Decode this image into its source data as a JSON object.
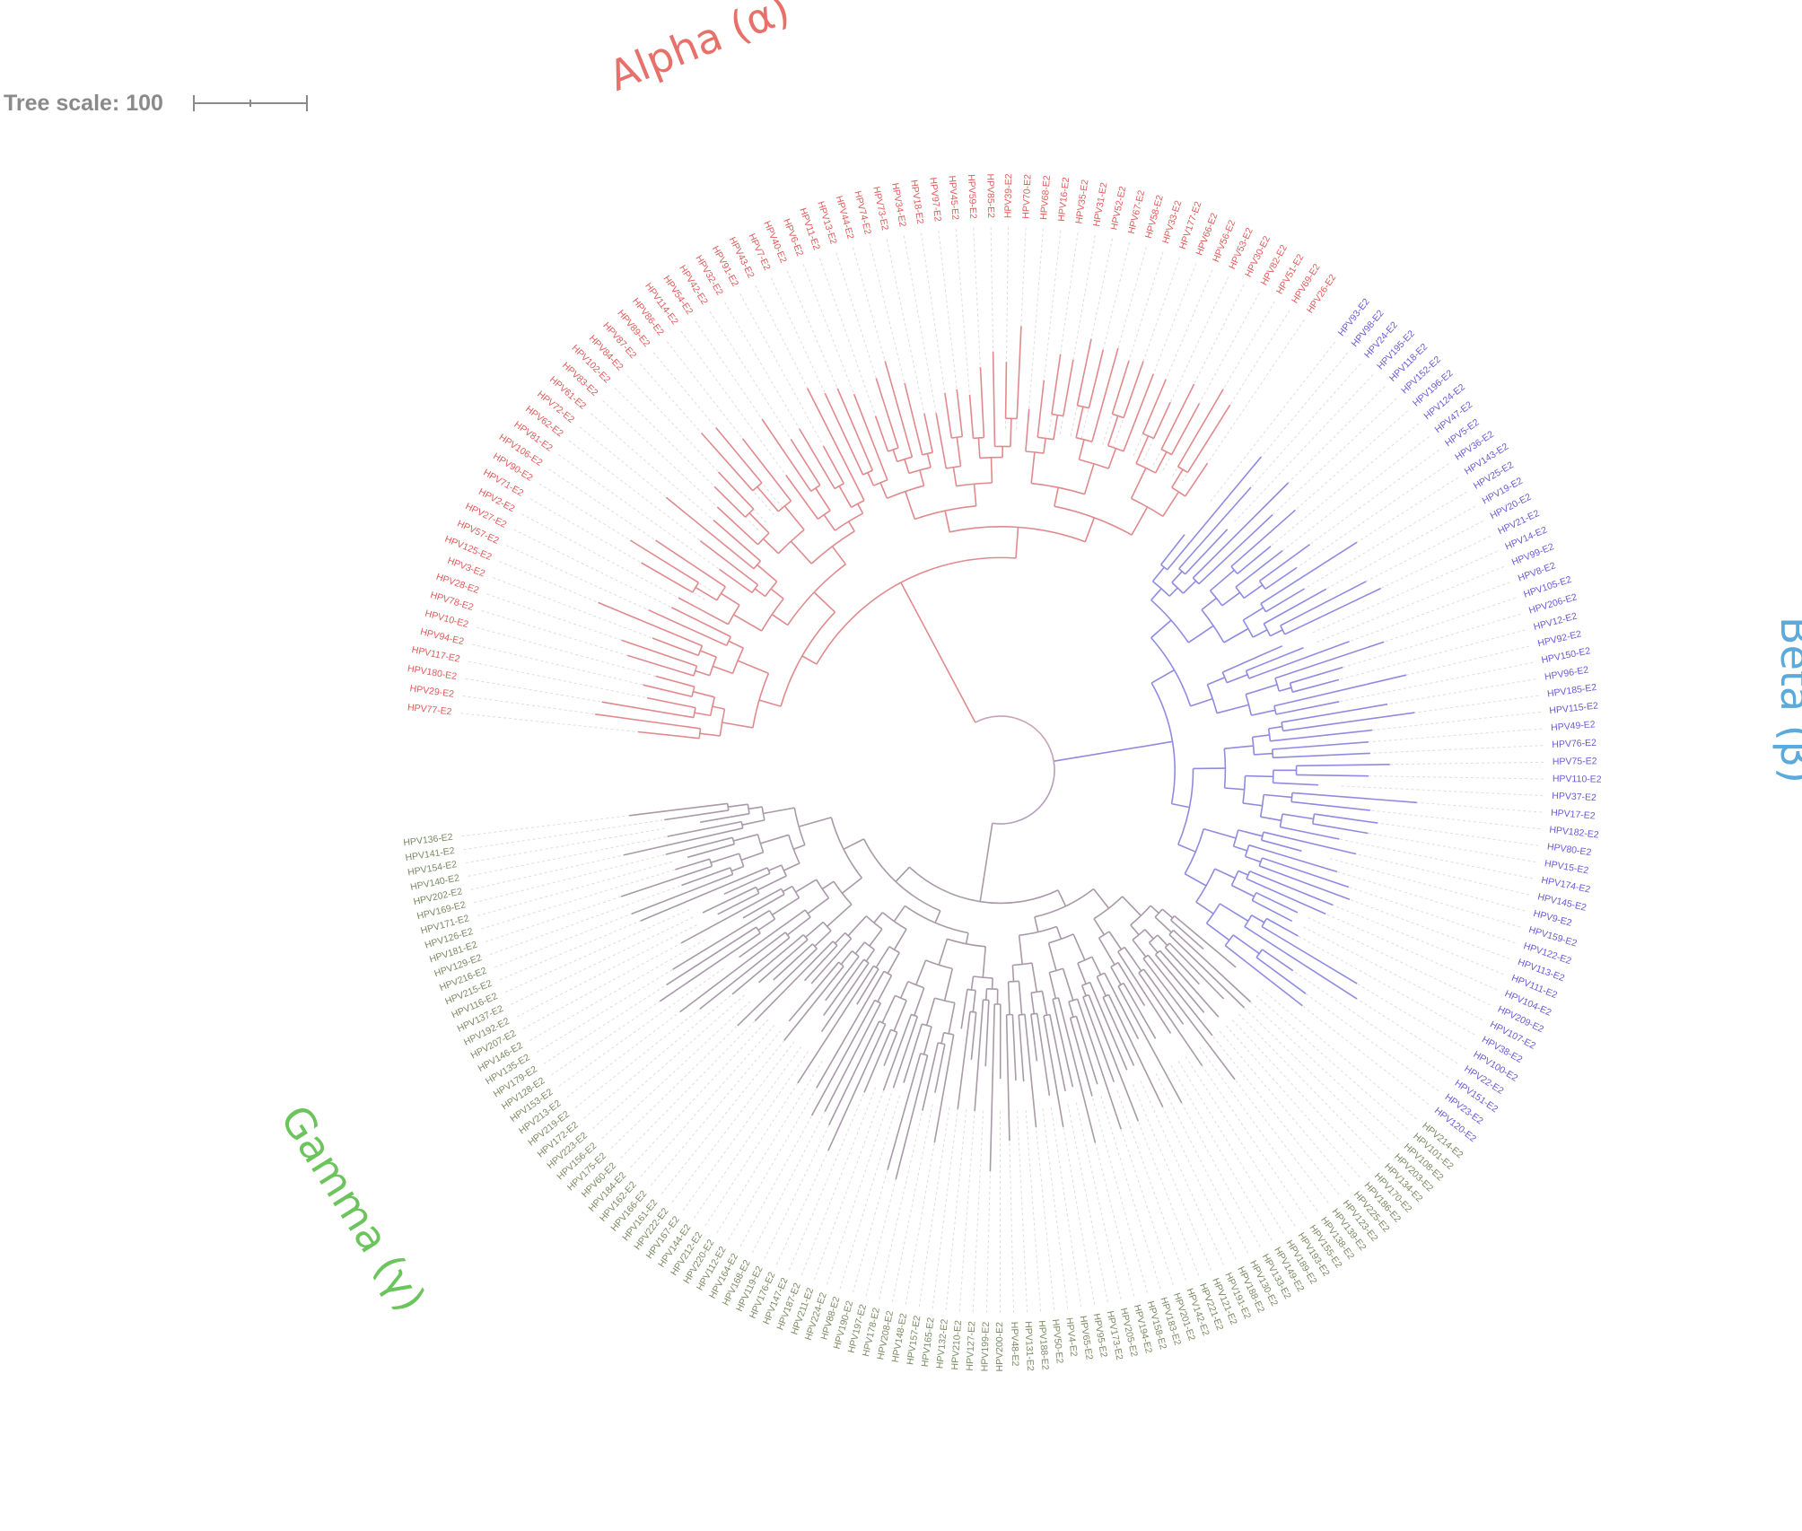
{
  "tree_scale": {
    "label": "Tree scale: 100",
    "color": "#8a8a8a"
  },
  "clades": [
    {
      "name": "Alpha (α)",
      "color": "#e8706a",
      "branch_color": "#e08a8e",
      "label_angle": 262
    },
    {
      "name": "Beta (β)",
      "color": "#5aaadb",
      "branch_color": "#8f8be0",
      "label_angle": 0
    },
    {
      "name": "Gamma (γ)",
      "color": "#6cc55c",
      "branch_color": "#a89aa8",
      "label_angle": 160
    }
  ],
  "colors": {
    "alpha_leaf": "#e05a5a",
    "beta_leaf": "#6a5ad6",
    "gamma_leaf": "#7a8a62",
    "guide": "#dddddd"
  },
  "leaves": {
    "alpha": [
      "HPV77-E2",
      "HPV29-E2",
      "HPV180-E2",
      "HPV117-E2",
      "HPV94-E2",
      "HPV10-E2",
      "HPV78-E2",
      "HPV28-E2",
      "HPV3-E2",
      "HPV125-E2",
      "HPV57-E2",
      "HPV27-E2",
      "HPV2-E2",
      "HPV71-E2",
      "HPV90-E2",
      "HPV106-E2",
      "HPV81-E2",
      "HPV62-E2",
      "HPV72-E2",
      "HPV61-E2",
      "HPV83-E2",
      "HPV102-E2",
      "HPV84-E2",
      "HPV87-E2",
      "HPV89-E2",
      "HPV86-E2",
      "HPV114-E2",
      "HPV54-E2",
      "HPV42-E2",
      "HPV32-E2",
      "HPV91-E2",
      "HPV43-E2",
      "HPV7-E2",
      "HPV40-E2",
      "HPV6-E2",
      "HPV11-E2",
      "HPV13-E2",
      "HPV44-E2",
      "HPV74-E2",
      "HPV73-E2",
      "HPV34-E2",
      "HPV18-E2",
      "HPV97-E2",
      "HPV45-E2",
      "HPV59-E2",
      "HPV85-E2",
      "HPV39-E2",
      "HPV70-E2",
      "HPV68-E2",
      "HPV16-E2",
      "HPV35-E2",
      "HPV31-E2",
      "HPV52-E2",
      "HPV67-E2",
      "HPV58-E2",
      "HPV33-E2",
      "HPV177-E2",
      "HPV66-E2",
      "HPV56-E2",
      "HPV53-E2",
      "HPV30-E2",
      "HPV82-E2",
      "HPV51-E2",
      "HPV69-E2",
      "HPV26-E2"
    ],
    "beta": [
      "HPV93-E2",
      "HPV98-E2",
      "HPV24-E2",
      "HPV195-E2",
      "HPV118-E2",
      "HPV152-E2",
      "HPV196-E2",
      "HPV124-E2",
      "HPV47-E2",
      "HPV5-E2",
      "HPV36-E2",
      "HPV143-E2",
      "HPV25-E2",
      "HPV19-E2",
      "HPV20-E2",
      "HPV21-E2",
      "HPV14-E2",
      "HPV99-E2",
      "HPV8-E2",
      "HPV105-E2",
      "HPV206-E2",
      "HPV12-E2",
      "HPV92-E2",
      "HPV150-E2",
      "HPV96-E2",
      "HPV185-E2",
      "HPV115-E2",
      "HPV49-E2",
      "HPV76-E2",
      "HPV75-E2",
      "HPV110-E2",
      "HPV37-E2",
      "HPV17-E2",
      "HPV182-E2",
      "HPV80-E2",
      "HPV15-E2",
      "HPV174-E2",
      "HPV145-E2",
      "HPV9-E2",
      "HPV159-E2",
      "HPV122-E2",
      "HPV113-E2",
      "HPV111-E2",
      "HPV104-E2",
      "HPV209-E2",
      "HPV107-E2",
      "HPV38-E2",
      "HPV100-E2",
      "HPV22-E2",
      "HPV151-E2",
      "HPV23-E2",
      "HPV120-E2"
    ],
    "gamma": [
      "HPV214-E2",
      "HPV101-E2",
      "HPV108-E2",
      "HPV203-E2",
      "HPV134-E2",
      "HPV170-E2",
      "HPV186-E2",
      "HPV225-E2",
      "HPV123-E2",
      "HPV139-E2",
      "HPV138-E2",
      "HPV155-E2",
      "HPV193-E2",
      "HPV189-E2",
      "HPV149-E2",
      "HPV133-E2",
      "HPV130-E2",
      "HPV188-E2",
      "HPV191-E2",
      "HPV121-E2",
      "HPV221-E2",
      "HPV142-E2",
      "HPV201-E2",
      "HPV183-E2",
      "HPV158-E2",
      "HPV194-E2",
      "HPV205-E2",
      "HPV173-E2",
      "HPV95-E2",
      "HPV65-E2",
      "HPV4-E2",
      "HPV50-E2",
      "HPV188-E2",
      "HPV131-E2",
      "HPV48-E2",
      "HPV200-E2",
      "HPV199-E2",
      "HPV127-E2",
      "HPV210-E2",
      "HPV132-E2",
      "HPV165-E2",
      "HPV157-E2",
      "HPV148-E2",
      "HPV208-E2",
      "HPV178-E2",
      "HPV197-E2",
      "HPV190-E2",
      "HPV88-E2",
      "HPV224-E2",
      "HPV211-E2",
      "HPV187-E2",
      "HPV147-E2",
      "HPV176-E2",
      "HPV119-E2",
      "HPV168-E2",
      "HPV164-E2",
      "HPV112-E2",
      "HPV220-E2",
      "HPV212-E2",
      "HPV144-E2",
      "HPV167-E2",
      "HPV222-E2",
      "HPV161-E2",
      "HPV166-E2",
      "HPV162-E2",
      "HPV184-E2",
      "HPV60-E2",
      "HPV175-E2",
      "HPV156-E2",
      "HPV223-E2",
      "HPV172-E2",
      "HPV219-E2",
      "HPV213-E2",
      "HPV153-E2",
      "HPV128-E2",
      "HPV179-E2",
      "HPV135-E2",
      "HPV146-E2",
      "HPV207-E2",
      "HPV192-E2",
      "HPV137-E2",
      "HPV116-E2",
      "HPV215-E2",
      "HPV216-E2",
      "HPV129-E2",
      "HPV181-E2",
      "HPV126-E2",
      "HPV171-E2",
      "HPV169-E2",
      "HPV202-E2",
      "HPV140-E2",
      "HPV154-E2",
      "HPV141-E2",
      "HPV136-E2"
    ]
  }
}
